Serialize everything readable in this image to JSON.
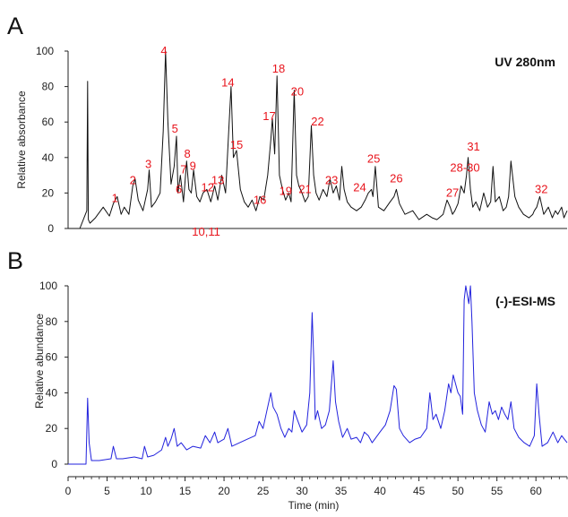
{
  "chart_data": [
    {
      "type": "line",
      "panel": "A",
      "tag": "UV 280nm",
      "ylabel": "Relative absorbance",
      "xlabel": "",
      "xlim": [
        0,
        64
      ],
      "ylim": [
        0,
        100
      ],
      "yticks": [
        "0",
        "20",
        "40",
        "60",
        "80",
        "100"
      ],
      "color": "#111111",
      "series": [
        {
          "x": [
            0,
            1.5,
            2.4,
            2.5,
            2.6,
            2.8,
            3.5,
            4.5,
            5.3,
            5.8,
            6.3,
            6.8,
            7.2,
            7.8,
            8.3,
            8.6,
            9.0,
            9.6,
            10.2,
            10.4,
            10.7,
            11.2,
            11.8,
            12.2,
            12.5,
            12.8,
            13.2,
            13.6,
            13.9,
            14.1,
            14.4,
            14.8,
            15.2,
            15.5,
            15.8,
            16.1,
            16.5,
            16.9,
            17.3,
            17.8,
            18.3,
            18.8,
            19.2,
            19.7,
            20.2,
            20.6,
            20.9,
            21.2,
            21.6,
            22.1,
            22.6,
            23.1,
            23.6,
            24.1,
            24.6,
            25.1,
            25.6,
            26.0,
            26.2,
            26.5,
            26.8,
            27.1,
            27.5,
            27.9,
            28.3,
            28.6,
            29.0,
            29.3,
            29.6,
            30.0,
            30.4,
            30.8,
            31.2,
            31.5,
            31.8,
            32.2,
            32.7,
            33.2,
            33.6,
            34.0,
            34.4,
            34.8,
            35.1,
            35.4,
            35.8,
            36.3,
            37.0,
            37.6,
            38.1,
            38.5,
            38.9,
            39.1,
            39.4,
            39.8,
            40.5,
            41.3,
            41.8,
            42.1,
            42.5,
            43.2,
            44.2,
            45.0,
            46.0,
            46.7,
            47.3,
            48.1,
            48.6,
            49.0,
            49.3,
            49.6,
            50.0,
            50.4,
            50.8,
            51.1,
            51.3,
            51.6,
            51.9,
            52.3,
            52.8,
            53.3,
            53.8,
            54.2,
            54.5,
            54.8,
            55.3,
            55.8,
            56.2,
            56.5,
            56.8,
            57.3,
            57.8,
            58.4,
            59.1,
            59.6,
            59.8,
            60.1,
            60.5,
            61.0,
            61.3,
            61.6,
            62.1,
            62.5,
            62.8,
            63.3,
            63.6,
            64.0
          ],
          "y": [
            0,
            0,
            10,
            83,
            5,
            3,
            6,
            12,
            7,
            14,
            18,
            8,
            12,
            8,
            24,
            28,
            16,
            10,
            22,
            33,
            12,
            15,
            20,
            55,
            100,
            60,
            25,
            35,
            52,
            20,
            30,
            15,
            38,
            22,
            20,
            33,
            18,
            15,
            20,
            22,
            15,
            24,
            16,
            30,
            20,
            55,
            80,
            40,
            44,
            22,
            15,
            12,
            16,
            10,
            18,
            16,
            30,
            50,
            62,
            42,
            86,
            30,
            22,
            16,
            20,
            15,
            78,
            30,
            24,
            20,
            15,
            18,
            58,
            30,
            20,
            16,
            22,
            18,
            28,
            20,
            24,
            16,
            35,
            22,
            15,
            12,
            10,
            12,
            16,
            20,
            22,
            18,
            35,
            12,
            10,
            15,
            18,
            22,
            14,
            8,
            10,
            5,
            8,
            6,
            5,
            8,
            16,
            12,
            8,
            10,
            14,
            24,
            20,
            30,
            40,
            22,
            12,
            15,
            10,
            20,
            12,
            15,
            35,
            15,
            18,
            10,
            12,
            18,
            38,
            18,
            12,
            8,
            6,
            8,
            10,
            12,
            18,
            8,
            10,
            12,
            6,
            10,
            8,
            12,
            6,
            10
          ],
          "labels": [
            {
              "text": "1",
              "x": 6.0,
              "y": 15
            },
            {
              "text": "2",
              "x": 8.3,
              "y": 25
            },
            {
              "text": "3",
              "x": 10.3,
              "y": 34
            },
            {
              "text": "4",
              "x": 12.3,
              "y": 98
            },
            {
              "text": "5",
              "x": 13.7,
              "y": 54
            },
            {
              "text": "6",
              "x": 14.2,
              "y": 20
            },
            {
              "text": "7",
              "x": 14.8,
              "y": 31
            },
            {
              "text": "8",
              "x": 15.3,
              "y": 40
            },
            {
              "text": "9",
              "x": 16.0,
              "y": 33
            },
            {
              "text": "10,11",
              "x": 17.7,
              "y": -4
            },
            {
              "text": "12",
              "x": 17.9,
              "y": 21
            },
            {
              "text": "13",
              "x": 19.2,
              "y": 25
            },
            {
              "text": "14",
              "x": 20.5,
              "y": 80
            },
            {
              "text": "15",
              "x": 21.6,
              "y": 45
            },
            {
              "text": "16",
              "x": 24.6,
              "y": 14
            },
            {
              "text": "17",
              "x": 25.8,
              "y": 61
            },
            {
              "text": "18",
              "x": 27.0,
              "y": 88
            },
            {
              "text": "19",
              "x": 27.9,
              "y": 19
            },
            {
              "text": "20",
              "x": 29.4,
              "y": 75
            },
            {
              "text": "21",
              "x": 30.4,
              "y": 20
            },
            {
              "text": "22",
              "x": 32.0,
              "y": 58
            },
            {
              "text": "23",
              "x": 33.8,
              "y": 25
            },
            {
              "text": "24",
              "x": 37.4,
              "y": 21
            },
            {
              "text": "25",
              "x": 39.2,
              "y": 37
            },
            {
              "text": "26",
              "x": 42.1,
              "y": 26
            },
            {
              "text": "27",
              "x": 49.3,
              "y": 18
            },
            {
              "text": "28-30",
              "x": 50.9,
              "y": 32
            },
            {
              "text": "31",
              "x": 52.0,
              "y": 44
            },
            {
              "text": "32",
              "x": 60.7,
              "y": 20
            }
          ]
        }
      ]
    },
    {
      "type": "line",
      "panel": "B",
      "tag": "(-)-ESI-MS",
      "ylabel": "Relative abundance",
      "xlabel": "Time (min)",
      "xlim": [
        0,
        64
      ],
      "ylim": [
        0,
        100
      ],
      "yticks": [
        "0",
        "20",
        "40",
        "60",
        "80",
        "100"
      ],
      "xticks": [
        "0",
        "5",
        "10",
        "15",
        "20",
        "25",
        "30",
        "35",
        "40",
        "45",
        "50",
        "55",
        "60"
      ],
      "color": "#2222dd",
      "series": [
        {
          "x": [
            0,
            1.5,
            2.3,
            2.5,
            2.7,
            3.0,
            4.0,
            5.5,
            5.8,
            6.2,
            7.0,
            8.5,
            9.5,
            9.8,
            10.2,
            11.0,
            12.0,
            12.5,
            12.8,
            13.2,
            13.6,
            14.0,
            14.5,
            15.2,
            16.0,
            17.0,
            17.6,
            18.2,
            18.8,
            19.2,
            20.0,
            20.5,
            21.0,
            22.0,
            23.0,
            24.0,
            24.5,
            25.0,
            25.5,
            26.0,
            26.3,
            26.8,
            27.3,
            27.8,
            28.3,
            28.7,
            29.0,
            29.4,
            30.0,
            30.6,
            31.0,
            31.3,
            31.5,
            31.7,
            32.0,
            32.5,
            33.0,
            33.5,
            34.0,
            34.3,
            34.7,
            35.2,
            35.8,
            36.3,
            37.0,
            37.5,
            38.0,
            38.5,
            39.0,
            39.5,
            40.0,
            40.7,
            41.3,
            41.8,
            42.1,
            42.5,
            43.0,
            43.8,
            44.5,
            45.2,
            46.0,
            46.4,
            46.8,
            47.2,
            47.8,
            48.3,
            48.8,
            49.1,
            49.4,
            49.7,
            50.0,
            50.3,
            50.6,
            50.8,
            51.0,
            51.2,
            51.4,
            51.6,
            51.8,
            52.1,
            52.5,
            53.0,
            53.5,
            54.0,
            54.4,
            54.8,
            55.2,
            55.6,
            56.0,
            56.4,
            56.8,
            57.2,
            57.8,
            58.5,
            59.2,
            59.8,
            60.1,
            60.4,
            60.8,
            61.5,
            62.2,
            62.8,
            63.3,
            64.0
          ],
          "y": [
            0,
            0,
            0,
            37,
            12,
            2,
            2,
            3,
            10,
            3,
            3,
            4,
            3,
            10,
            4,
            5,
            8,
            15,
            10,
            14,
            20,
            10,
            12,
            8,
            10,
            9,
            16,
            12,
            18,
            12,
            14,
            20,
            10,
            12,
            14,
            16,
            24,
            20,
            30,
            40,
            32,
            28,
            20,
            15,
            20,
            18,
            30,
            25,
            18,
            22,
            40,
            85,
            60,
            25,
            30,
            20,
            22,
            30,
            58,
            35,
            24,
            15,
            20,
            14,
            15,
            12,
            18,
            16,
            12,
            15,
            18,
            22,
            30,
            44,
            42,
            20,
            16,
            12,
            14,
            15,
            20,
            40,
            25,
            28,
            20,
            30,
            45,
            40,
            50,
            45,
            40,
            38,
            28,
            92,
            100,
            95,
            90,
            100,
            80,
            40,
            30,
            22,
            18,
            35,
            28,
            30,
            25,
            32,
            28,
            25,
            35,
            20,
            15,
            12,
            10,
            16,
            45,
            28,
            10,
            12,
            18,
            12,
            16,
            12
          ],
          "labels": []
        }
      ]
    }
  ]
}
